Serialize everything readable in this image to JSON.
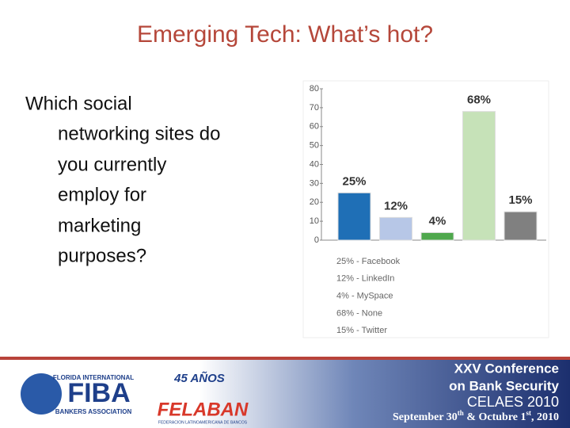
{
  "slide_title": "Emerging Tech: What’s hot?",
  "question": [
    "Which social",
    "networking sites do",
    "you currently",
    "employ for",
    "marketing",
    "purposes?"
  ],
  "chart_data": {
    "type": "bar",
    "categories": [
      null,
      null,
      null,
      null,
      null
    ],
    "values": [
      25,
      12,
      4,
      68,
      15
    ],
    "value_labels": [
      "25%",
      "12%",
      "4%",
      "68%",
      "15%"
    ],
    "colors": [
      "#1f6fb6",
      "#b7c7e7",
      "#4fa84d",
      "#c6e2b8",
      "#808080"
    ],
    "legend_labels": [
      "25% - Facebook",
      "12% - LinkedIn",
      "4% - MySpace",
      "68% - None",
      "15% - Twitter"
    ],
    "ylim": [
      0,
      80
    ],
    "yticks": [
      0,
      10,
      20,
      30,
      40,
      50,
      60,
      70,
      80
    ]
  },
  "footer": {
    "fiba_top": "FLORIDA INTERNATIONAL",
    "fiba": "FIBA",
    "fiba_bottom": "BANKERS ASSOCIATION",
    "felaban_years": "45 AÑOS",
    "felaban": "FELABAN",
    "felaban_sub": "FEDERACION LATINOAMERICANA DE BANCOS",
    "conf_line1": "XXV Conference",
    "conf_line2": "on Bank Security",
    "conf_line3": "CELAES 2010",
    "date": [
      "September 30",
      "th",
      " & Octubre 1",
      "st",
      ", 2010"
    ]
  }
}
